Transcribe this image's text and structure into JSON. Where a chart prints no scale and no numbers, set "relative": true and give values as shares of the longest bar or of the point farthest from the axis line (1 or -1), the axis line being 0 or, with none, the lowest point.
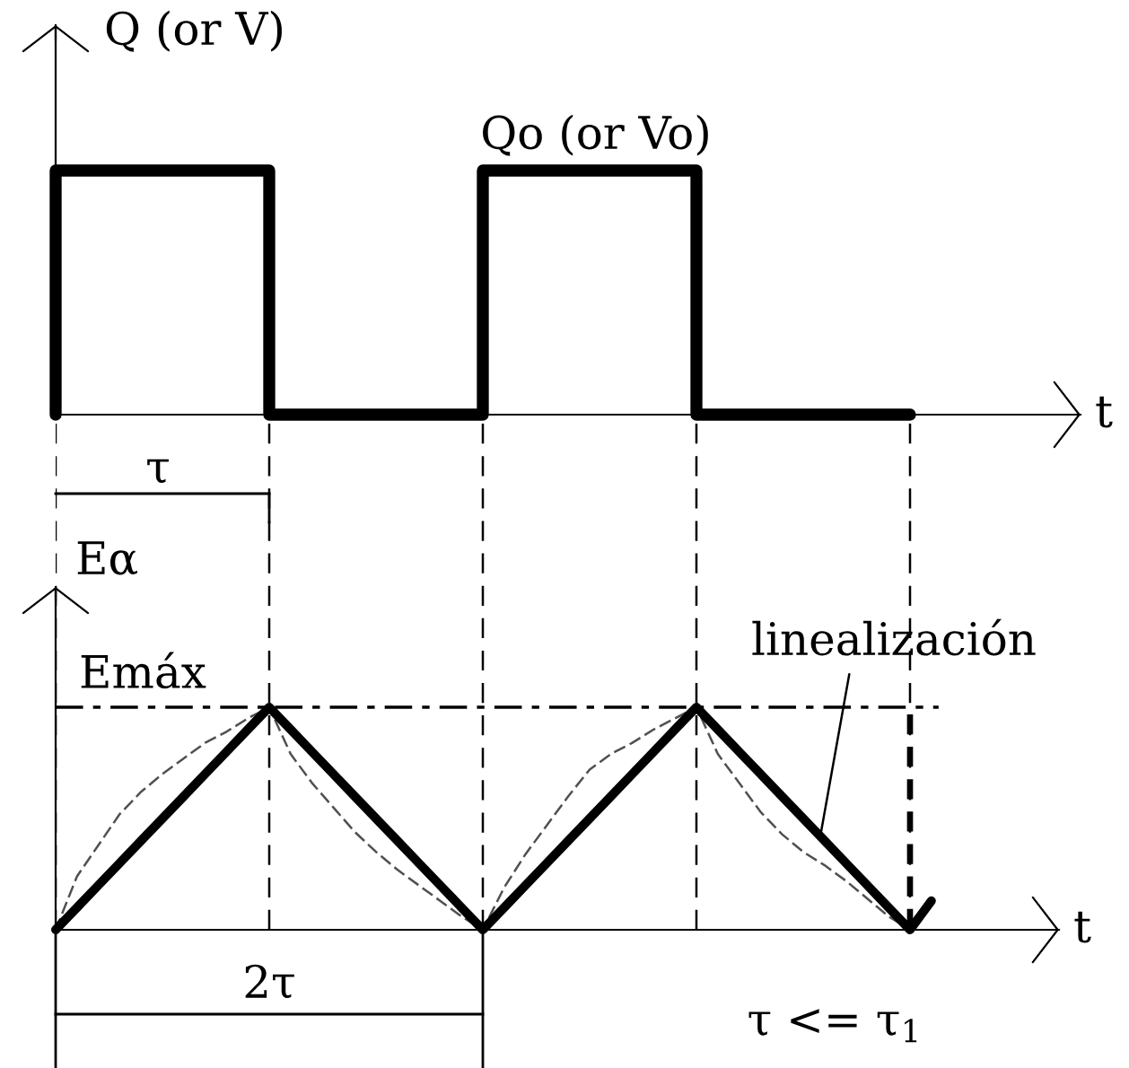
{
  "chart_data": [
    {
      "type": "step",
      "relative": true,
      "xlabel": "t",
      "ylabel": "Q (or V)",
      "categories": [
        null,
        null,
        null,
        null,
        null
      ],
      "series": [
        {
          "color": "#000000",
          "values": [
            0,
            1,
            0,
            1,
            0
          ]
        }
      ],
      "annotations": [
        {
          "text": "Qo (or Vo)",
          "y": 1
        },
        "τ"
      ]
    },
    {
      "type": "line",
      "relative": true,
      "xlabel": "t",
      "ylabel": "Eα",
      "grid": "x",
      "categories": [
        null,
        null,
        null,
        null,
        null,
        null,
        null,
        null,
        null,
        null,
        null,
        null,
        null,
        null,
        null,
        null,
        null,
        null,
        null,
        null,
        null,
        null,
        null,
        null,
        null,
        null,
        null,
        null,
        null,
        null,
        null,
        null,
        null,
        null,
        null,
        null,
        null,
        null,
        null,
        null,
        null,
        null
      ],
      "series": [
        {
          "color": "#000000",
          "values": [
            0,
            0.1,
            0.2,
            0.3,
            0.4,
            0.5,
            0.6,
            0.7,
            0.8,
            0.9,
            1,
            0.9,
            0.8,
            0.7,
            0.6,
            0.5,
            0.4,
            0.3,
            0.2,
            0.1,
            0,
            0.1,
            0.2,
            0.3,
            0.4,
            0.5,
            0.6,
            0.7,
            0.8,
            0.9,
            1,
            0.9,
            0.8,
            0.7,
            0.6,
            0.5,
            0.4,
            0.3,
            0.2,
            0.1,
            0,
            0.13
          ]
        },
        {
          "color": "#505050",
          "line_style": "dashed",
          "values": [
            0,
            0.24,
            0.38,
            0.52,
            0.62,
            0.7,
            0.77,
            0.84,
            0.89,
            0.95,
            1,
            0.79,
            0.66,
            0.55,
            0.44,
            0.35,
            0.27,
            0.2,
            0.13,
            0.06,
            0,
            0.19,
            0.34,
            0.47,
            0.6,
            0.72,
            0.79,
            0.84,
            0.9,
            0.95,
            1,
            0.79,
            0.66,
            0.53,
            0.43,
            0.35,
            0.29,
            0.22,
            0.14,
            0.06,
            0,
            null
          ]
        }
      ],
      "ref_lines": [
        {
          "axis": "y",
          "value": 1,
          "label": "Emáx",
          "line_style": "dashed"
        }
      ],
      "annotations": [
        "linealización",
        "2τ",
        "τ <= τ$_{1}$"
      ]
    }
  ]
}
